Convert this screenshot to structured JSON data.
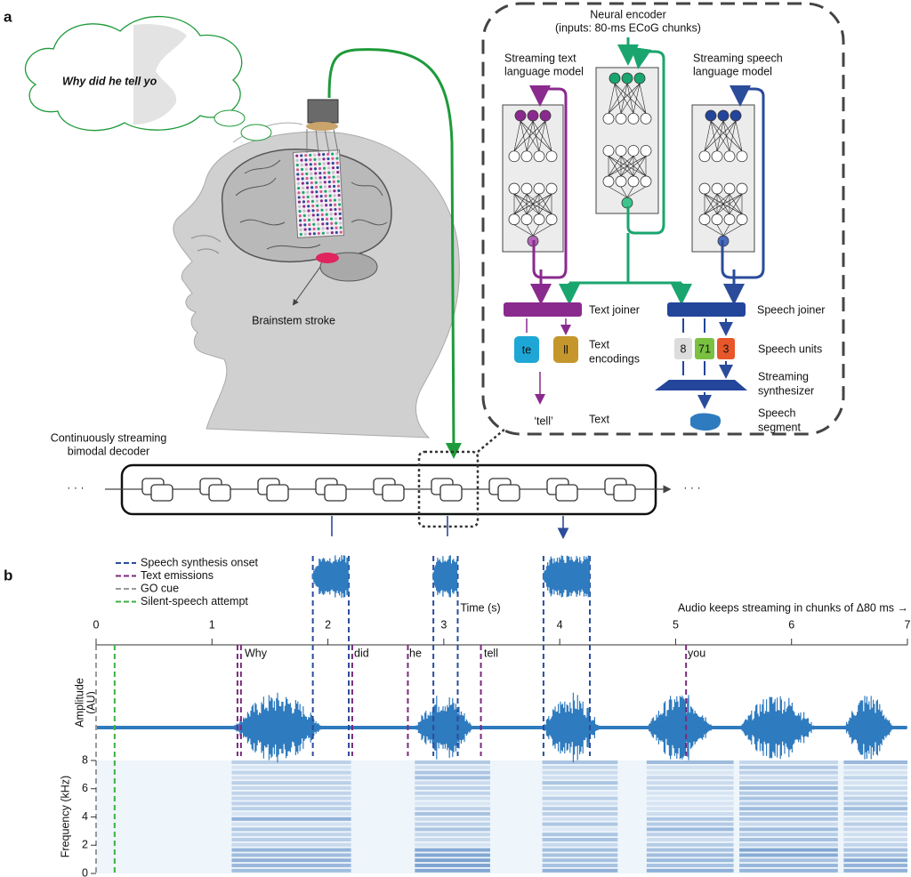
{
  "panel_a": {
    "label": "a",
    "thought": "Why did he tell yo",
    "stroke_label": "Brainstem stroke",
    "encoder": {
      "title": "Neural encoder",
      "subtitle": "(inputs: 80-ms ECoG chunks)"
    },
    "text_lm": [
      "Streaming text",
      "language model"
    ],
    "speech_lm": [
      "Streaming speech",
      "language model"
    ],
    "text_joiner": "Text joiner",
    "speech_joiner": "Speech joiner",
    "text_encodings": {
      "tokens": [
        "te",
        "ll"
      ],
      "label": [
        "Text",
        "encodings"
      ]
    },
    "speech_units": {
      "units": [
        "8",
        "71",
        "3"
      ],
      "label": "Speech units"
    },
    "synthesizer": [
      "Streaming",
      "synthesizer"
    ],
    "text_output": {
      "value": "‘tell’",
      "label": "Text"
    },
    "speech_output": [
      "Speech",
      "segment"
    ],
    "decoder": {
      "label": [
        "Continuously streaming",
        "bimodal decoder"
      ],
      "ellipsis": "· · ·"
    }
  },
  "panel_b": {
    "label": "b",
    "time_axis": {
      "label": "Time (s)",
      "xlim": [
        0,
        7
      ],
      "xticks": [
        0,
        1,
        2,
        3,
        4,
        5,
        6,
        7
      ]
    },
    "note": "Audio keeps streaming in chunks of Δ80 ms →",
    "amplitude_label": [
      "Amplitude",
      "(AU)"
    ],
    "frequency_axis": {
      "label": "Frequency (kHz)",
      "ylim": [
        0,
        8
      ],
      "yticks": [
        0,
        2,
        4,
        6,
        8
      ]
    },
    "events": [
      {
        "name": "Speech synthesis onset",
        "color": "#2b4c9b",
        "times": [
          1.87,
          2.18,
          2.91,
          3.12,
          3.86,
          4.26
        ]
      },
      {
        "name": "Text emissions",
        "color": "#7b2a7e",
        "times": [
          1.22,
          1.25,
          2.21,
          2.69,
          3.32,
          5.09
        ]
      },
      {
        "name": "GO cue",
        "color": "#9a9a9a",
        "times": [
          0
        ]
      },
      {
        "name": "Silent-speech attempt",
        "color": "#3cb043",
        "times": [
          0.16
        ]
      }
    ],
    "words": [
      "Why",
      "did",
      "he",
      "tell",
      "you"
    ]
  }
}
